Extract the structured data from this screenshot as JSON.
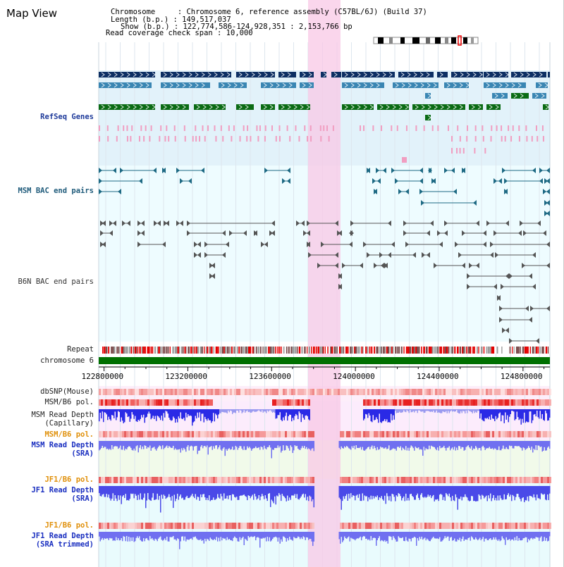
{
  "title": "Map View",
  "header": {
    "line1": "Chromosome     : Chromosome 6, reference assembly (C57BL/6J) (Build 37)",
    "line2": "Length (b.p.) : 149,517,037",
    "line3": "Show (b.p.) : 122,774,586-124,928,351 : 2,153,766 bp",
    "line4": "Read coverage check span : 10,000"
  },
  "tracks": {
    "refseq": "RefSeq Genes",
    "msm_bac": "MSM BAC end pairs",
    "b6n_bac": "B6N BAC end pairs",
    "repeat": "Repeat",
    "chromosome": "chromosome 6",
    "dbsnp": "dbSNP(Mouse)",
    "msm_b6_pol1": "MSM/B6 pol.",
    "msm_depth_cap_1": "MSM Read Depth",
    "msm_depth_cap_2": "(Capillary)",
    "msm_b6_pol2": "MSM/B6 pol.",
    "msm_depth_sra_1": "MSM Read Depth",
    "msm_depth_sra_2": "(SRA)",
    "jf1_b6_pol1": "JF1/B6 pol.",
    "jf1_depth_sra_1": "JF1 Read Depth",
    "jf1_depth_sra_2": "(SRA)",
    "jf1_b6_pol2": "JF1/B6 pol.",
    "jf1_depth_trim_1": "JF1 Read Depth",
    "jf1_depth_trim_2": "(SRA trimmed)"
  },
  "axis": {
    "ticks": [
      "122800000",
      "123200000",
      "123600000",
      "124000000",
      "124400000",
      "124800000"
    ],
    "tick_values": [
      122800000,
      123200000,
      123600000,
      124000000,
      124400000,
      124800000
    ],
    "range": [
      122774586,
      124928351
    ]
  },
  "colors": {
    "refseq_dark": "#0d2f63",
    "refseq_mid": "#3a86b3",
    "refseq_green": "#0a6b14",
    "refseq_pink": "#f19ec1",
    "highlight": "#f8c8e6",
    "msm_bac": "#1e6a84",
    "b6n_bac": "#555555",
    "chromosome": "#007000",
    "depth_blue": "#2020e0",
    "depth_light": "#7070f0"
  }
}
